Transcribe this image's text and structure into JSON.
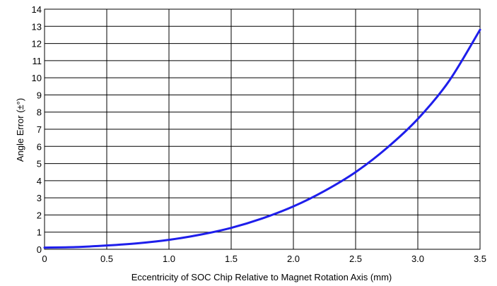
{
  "chart_data": {
    "type": "line",
    "xlabel": "Eccentricity of SOC Chip Relative to Magnet Rotation Axis (mm)",
    "ylabel": "Angle Error (±°)",
    "xlim": [
      0,
      3.5
    ],
    "ylim": [
      0,
      14
    ],
    "x_ticks": [
      "0",
      "0.5",
      "1.0",
      "1.5",
      "2.0",
      "2.5",
      "3.0",
      "3.5"
    ],
    "y_ticks": [
      "0",
      "1",
      "2",
      "3",
      "4",
      "5",
      "6",
      "7",
      "8",
      "9",
      "10",
      "11",
      "12",
      "13",
      "14"
    ],
    "grid": true,
    "series": [
      {
        "color": "#1e1eeb",
        "x": [
          0,
          0.25,
          0.5,
          0.75,
          1.0,
          1.25,
          1.5,
          1.75,
          2.0,
          2.25,
          2.5,
          2.75,
          3.0,
          3.25,
          3.5
        ],
        "y": [
          0.1,
          0.13,
          0.22,
          0.35,
          0.55,
          0.85,
          1.25,
          1.8,
          2.5,
          3.4,
          4.5,
          5.9,
          7.6,
          9.8,
          12.8
        ]
      }
    ]
  }
}
